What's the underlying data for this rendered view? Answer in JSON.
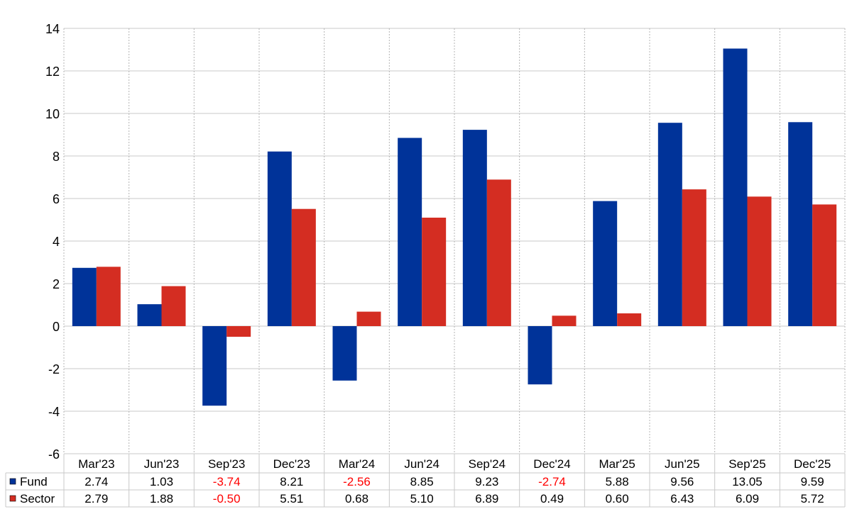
{
  "chart_data": {
    "type": "bar",
    "categories": [
      "Mar'23",
      "Jun'23",
      "Sep'23",
      "Dec'23",
      "Mar'24",
      "Jun'24",
      "Sep'24",
      "Dec'24",
      "Mar'25",
      "Jun'25",
      "Sep'25",
      "Dec'25"
    ],
    "series": [
      {
        "name": "Fund",
        "color": "#003399",
        "values": [
          2.74,
          1.03,
          -3.74,
          8.21,
          -2.56,
          8.85,
          9.23,
          -2.74,
          5.88,
          9.56,
          13.05,
          9.59
        ],
        "labels": [
          "2.74",
          "1.03",
          "-3.74",
          "8.21",
          "-2.56",
          "8.85",
          "9.23",
          "-2.74",
          "5.88",
          "9.56",
          "13.05",
          "9.59"
        ]
      },
      {
        "name": "Sector",
        "color": "#d42d22",
        "values": [
          2.79,
          1.88,
          -0.5,
          5.51,
          0.68,
          5.1,
          6.89,
          0.49,
          0.6,
          6.43,
          6.09,
          5.72
        ],
        "labels": [
          "2.79",
          "1.88",
          "-0.50",
          "5.51",
          "0.68",
          "5.10",
          "6.89",
          "0.49",
          "0.60",
          "6.43",
          "6.09",
          "5.72"
        ]
      }
    ],
    "yticks": [
      "14",
      "12",
      "10",
      "8",
      "6",
      "4",
      "2",
      "0",
      "-2",
      "-4",
      "-6"
    ],
    "ylim": [
      -6,
      14
    ],
    "grid": true,
    "legend": "data-table-left",
    "negative_label_color": "#ff0000"
  }
}
